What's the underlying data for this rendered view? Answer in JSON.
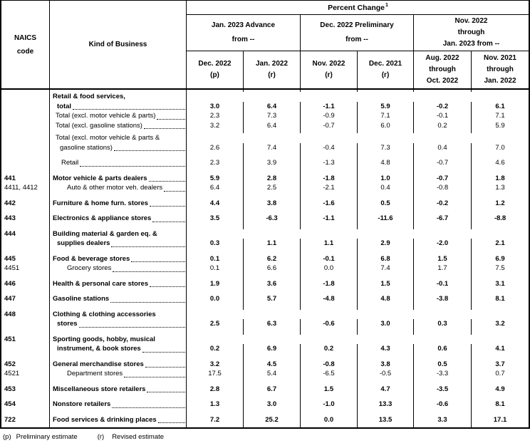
{
  "header": {
    "naics_line1": "NAICS",
    "naics_line2": "code",
    "kind_of_business": "Kind of Business",
    "percent_change": "Percent Change",
    "percent_change_sup": "1",
    "groups": [
      {
        "lines": [
          "Jan. 2023 Advance",
          "from --"
        ]
      },
      {
        "lines": [
          "Dec. 2022 Preliminary",
          "from --"
        ]
      },
      {
        "lines": [
          "Nov. 2022",
          "through",
          "Jan. 2023 from --"
        ]
      }
    ],
    "columns": [
      {
        "lines": [
          "Dec. 2022",
          "(p)"
        ]
      },
      {
        "lines": [
          "Jan. 2022",
          "(r)"
        ]
      },
      {
        "lines": [
          "Nov. 2022",
          "(r)"
        ]
      },
      {
        "lines": [
          "Dec. 2021",
          "(r)"
        ]
      },
      {
        "lines": [
          "Aug. 2022",
          "through",
          "Oct. 2022"
        ]
      },
      {
        "lines": [
          "Nov. 2021",
          "through",
          "Jan. 2022"
        ]
      }
    ]
  },
  "table": {
    "rows": [
      {
        "code": "",
        "bold": true,
        "gap": 3,
        "label_lines": [
          {
            "text": "Retail & food services,",
            "indent": 4,
            "leader": false
          },
          {
            "text": "total",
            "indent": 10,
            "leader": true
          }
        ],
        "values": [
          "3.0",
          "6.4",
          "-1.1",
          "5.9",
          "-0.2",
          "6.1"
        ]
      },
      {
        "code": "",
        "bold": false,
        "gap": 0,
        "label_lines": [
          {
            "text": "Total (excl. motor vehicle & parts)",
            "indent": 8,
            "leader": true
          }
        ],
        "values": [
          "2.3",
          "7.3",
          "-0.9",
          "7.1",
          "-0.1",
          "7.1"
        ]
      },
      {
        "code": "",
        "bold": false,
        "gap": 0,
        "label_lines": [
          {
            "text": "Total (excl. gasoline stations)",
            "indent": 8,
            "leader": true
          }
        ],
        "values": [
          "3.2",
          "6.4",
          "-0.7",
          "6.0",
          "0.2",
          "5.9"
        ]
      },
      {
        "code": "",
        "bold": false,
        "gap": 4,
        "label_lines": [
          {
            "text": "Total (excl. motor vehicle & parts &",
            "indent": 8,
            "leader": false
          },
          {
            "text": "gasoline stations)",
            "indent": 14,
            "leader": true
          }
        ],
        "values": [
          "2.6",
          "7.4",
          "-0.4",
          "7.3",
          "0.4",
          "7.0"
        ]
      },
      {
        "code": "",
        "bold": false,
        "gap": 8,
        "label_lines": [
          {
            "text": "Retail",
            "indent": 16,
            "leader": true
          }
        ],
        "values": [
          "2.3",
          "3.9",
          "-1.3",
          "4.8",
          "-0.7",
          "4.6"
        ]
      },
      {
        "code": "441",
        "bold": true,
        "gap": 8,
        "label_lines": [
          {
            "text": "Motor vehicle & parts dealers",
            "indent": 4,
            "leader": true
          }
        ],
        "values": [
          "5.9",
          "2.8",
          "-1.8",
          "1.0",
          "-0.7",
          "1.8"
        ]
      },
      {
        "code": "4411, 4412",
        "bold": false,
        "gap": 0,
        "label_lines": [
          {
            "text": "Auto & other motor veh. dealers",
            "indent": 24,
            "leader": true
          }
        ],
        "values": [
          "6.4",
          "2.5",
          "-2.1",
          "0.4",
          "-0.8",
          "1.3"
        ]
      },
      {
        "code": "442",
        "bold": true,
        "gap": 8,
        "label_lines": [
          {
            "text": "Furniture & home furn. stores",
            "indent": 4,
            "leader": true
          }
        ],
        "values": [
          "4.4",
          "3.8",
          "-1.6",
          "0.5",
          "-0.2",
          "1.2"
        ]
      },
      {
        "code": "443",
        "bold": true,
        "gap": 8,
        "label_lines": [
          {
            "text": "Electronics & appliance stores",
            "indent": 4,
            "leader": true
          }
        ],
        "values": [
          "3.5",
          "-6.3",
          "-1.1",
          "-11.6",
          "-6.7",
          "-8.8"
        ]
      },
      {
        "code": "444",
        "bold": true,
        "gap": 8,
        "label_lines": [
          {
            "text": "Building material & garden eq. &",
            "indent": 4,
            "leader": false
          },
          {
            "text": "supplies dealers",
            "indent": 10,
            "leader": true
          }
        ],
        "values": [
          "0.3",
          "1.1",
          "1.1",
          "2.9",
          "-2.0",
          "2.1"
        ]
      },
      {
        "code": "445",
        "bold": true,
        "gap": 8,
        "label_lines": [
          {
            "text": "Food & beverage stores",
            "indent": 4,
            "leader": true
          }
        ],
        "values": [
          "0.1",
          "6.2",
          "-0.1",
          "6.8",
          "1.5",
          "6.9"
        ]
      },
      {
        "code": "4451",
        "bold": false,
        "gap": 0,
        "label_lines": [
          {
            "text": "Grocery stores",
            "indent": 24,
            "leader": true
          }
        ],
        "values": [
          "0.1",
          "6.6",
          "0.0",
          "7.4",
          "1.7",
          "7.5"
        ]
      },
      {
        "code": "446",
        "bold": true,
        "gap": 8,
        "label_lines": [
          {
            "text": "Health & personal care stores",
            "indent": 4,
            "leader": true
          }
        ],
        "values": [
          "1.9",
          "3.6",
          "-1.8",
          "1.5",
          "-0.1",
          "3.1"
        ]
      },
      {
        "code": "447",
        "bold": true,
        "gap": 8,
        "label_lines": [
          {
            "text": "Gasoline stations",
            "indent": 4,
            "leader": true
          }
        ],
        "values": [
          "0.0",
          "5.7",
          "-4.8",
          "4.8",
          "-3.8",
          "8.1"
        ]
      },
      {
        "code": "448",
        "bold": true,
        "gap": 8,
        "label_lines": [
          {
            "text": "Clothing & clothing accessories",
            "indent": 4,
            "leader": false
          },
          {
            "text": "stores",
            "indent": 10,
            "leader": true
          }
        ],
        "values": [
          "2.5",
          "6.3",
          "-0.6",
          "3.0",
          "0.3",
          "3.2"
        ]
      },
      {
        "code": "451",
        "bold": true,
        "gap": 8,
        "label_lines": [
          {
            "text": "Sporting goods, hobby, musical",
            "indent": 4,
            "leader": false
          },
          {
            "text": "instrument, & book stores",
            "indent": 10,
            "leader": true
          }
        ],
        "values": [
          "0.2",
          "6.9",
          "0.2",
          "4.3",
          "0.6",
          "4.1"
        ]
      },
      {
        "code": "452",
        "bold": true,
        "gap": 8,
        "label_lines": [
          {
            "text": "General merchandise stores",
            "indent": 4,
            "leader": true
          }
        ],
        "values": [
          "3.2",
          "4.5",
          "-0.8",
          "3.8",
          "0.5",
          "3.7"
        ]
      },
      {
        "code": "4521",
        "bold": false,
        "gap": 0,
        "label_lines": [
          {
            "text": "Department stores",
            "indent": 24,
            "leader": true
          }
        ],
        "values": [
          "17.5",
          "5.4",
          "-6.5",
          "-0.5",
          "-3.3",
          "0.7"
        ]
      },
      {
        "code": "453",
        "bold": true,
        "gap": 8,
        "label_lines": [
          {
            "text": "Miscellaneous store retailers",
            "indent": 4,
            "leader": true
          }
        ],
        "values": [
          "2.8",
          "6.7",
          "1.5",
          "4.7",
          "-3.5",
          "4.9"
        ]
      },
      {
        "code": "454",
        "bold": true,
        "gap": 8,
        "label_lines": [
          {
            "text": "Nonstore retailers",
            "indent": 4,
            "leader": true
          }
        ],
        "values": [
          "1.3",
          "3.0",
          "-1.0",
          "13.3",
          "-0.6",
          "8.1"
        ]
      },
      {
        "code": "722",
        "bold": true,
        "gap": 8,
        "label_lines": [
          {
            "text": "Food services & drinking places",
            "indent": 4,
            "leader": true
          }
        ],
        "values": [
          "7.2",
          "25.2",
          "0.0",
          "13.5",
          "3.3",
          "17.1"
        ]
      }
    ]
  },
  "footnote": {
    "p_label": "(p)",
    "p_text": "Preliminary estimate",
    "r_label": "(r)",
    "r_text": "Revised estimate"
  }
}
